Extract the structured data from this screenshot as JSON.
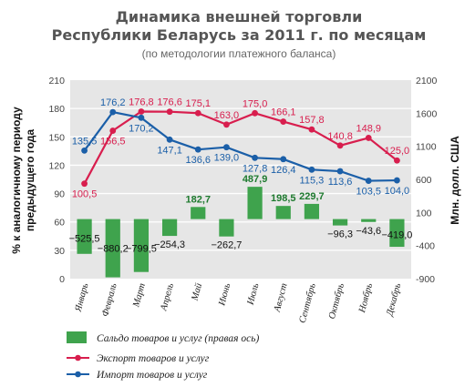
{
  "colors": {
    "export": "#d81e4e",
    "import": "#1b5fa8",
    "balance": "#3fa34d",
    "plot_bg": "#e6e6e6",
    "grid": "#ffffff"
  },
  "chart_data": {
    "type": "bar",
    "title_lines": [
      "Динамика внешней торговли",
      "Республики Беларусь за 2011 г. по месяцам"
    ],
    "subtitle": "(по методологии платежного баланса)",
    "ylabel_left": [
      "% к аналогичному периоду",
      "предыдущего года"
    ],
    "ylabel_right": "Млн. долл. США",
    "left_axis": {
      "min": 0,
      "max": 210,
      "ticks": [
        0,
        30,
        60,
        90,
        120,
        150,
        180,
        210
      ]
    },
    "right_axis": {
      "min": -900,
      "max": 2100,
      "ticks": [
        -900,
        -400,
        100,
        600,
        1100,
        1600,
        2100
      ]
    },
    "grid": true,
    "categories": [
      "Январь",
      "Февраль",
      "Март",
      "Апрель",
      "Май",
      "Июнь",
      "Июль",
      "Август",
      "Сентябрь",
      "Октябрь",
      "Ноябрь",
      "Декабрь"
    ],
    "series": [
      {
        "name": "Сальдо товаров и услуг (правая ось)",
        "kind": "bar",
        "axis": "right",
        "values": [
          -525.5,
          -880.2,
          -799.5,
          -254.3,
          182.7,
          -262.7,
          487.9,
          198.5,
          229.7,
          -96.3,
          -43.6,
          -419.0
        ],
        "labels": [
          "−525,5",
          "−880,2",
          "−799,5",
          "−254,3",
          "182,7",
          "−262,7",
          "487,9",
          "198,5",
          "229,7",
          "−96,3",
          "−43,6",
          "−419,0"
        ]
      },
      {
        "name": "Экспорт товаров и услуг",
        "kind": "line",
        "axis": "left",
        "values": [
          100.5,
          156.5,
          176.8,
          176.6,
          175.1,
          163.0,
          175.0,
          166.1,
          157.8,
          140.8,
          148.9,
          125.0
        ],
        "labels": [
          "100,5",
          "156,5",
          "176,8",
          "176,6",
          "175,1",
          "163,0",
          "175,0",
          "166,1",
          "157,8",
          "140,8",
          "148,9",
          "125,0"
        ]
      },
      {
        "name": "Импорт товаров и услуг",
        "kind": "line",
        "axis": "left",
        "values": [
          135.5,
          176.2,
          170.2,
          147.1,
          136.6,
          139.0,
          127.8,
          126.4,
          115.3,
          113.6,
          103.5,
          104.0
        ],
        "labels": [
          "135,5",
          "176,2",
          "170,2",
          "147,1",
          "136,6",
          "139,0",
          "127,8",
          "126,4",
          "115,3",
          "113,6",
          "103,5",
          "104,0"
        ]
      }
    ]
  }
}
